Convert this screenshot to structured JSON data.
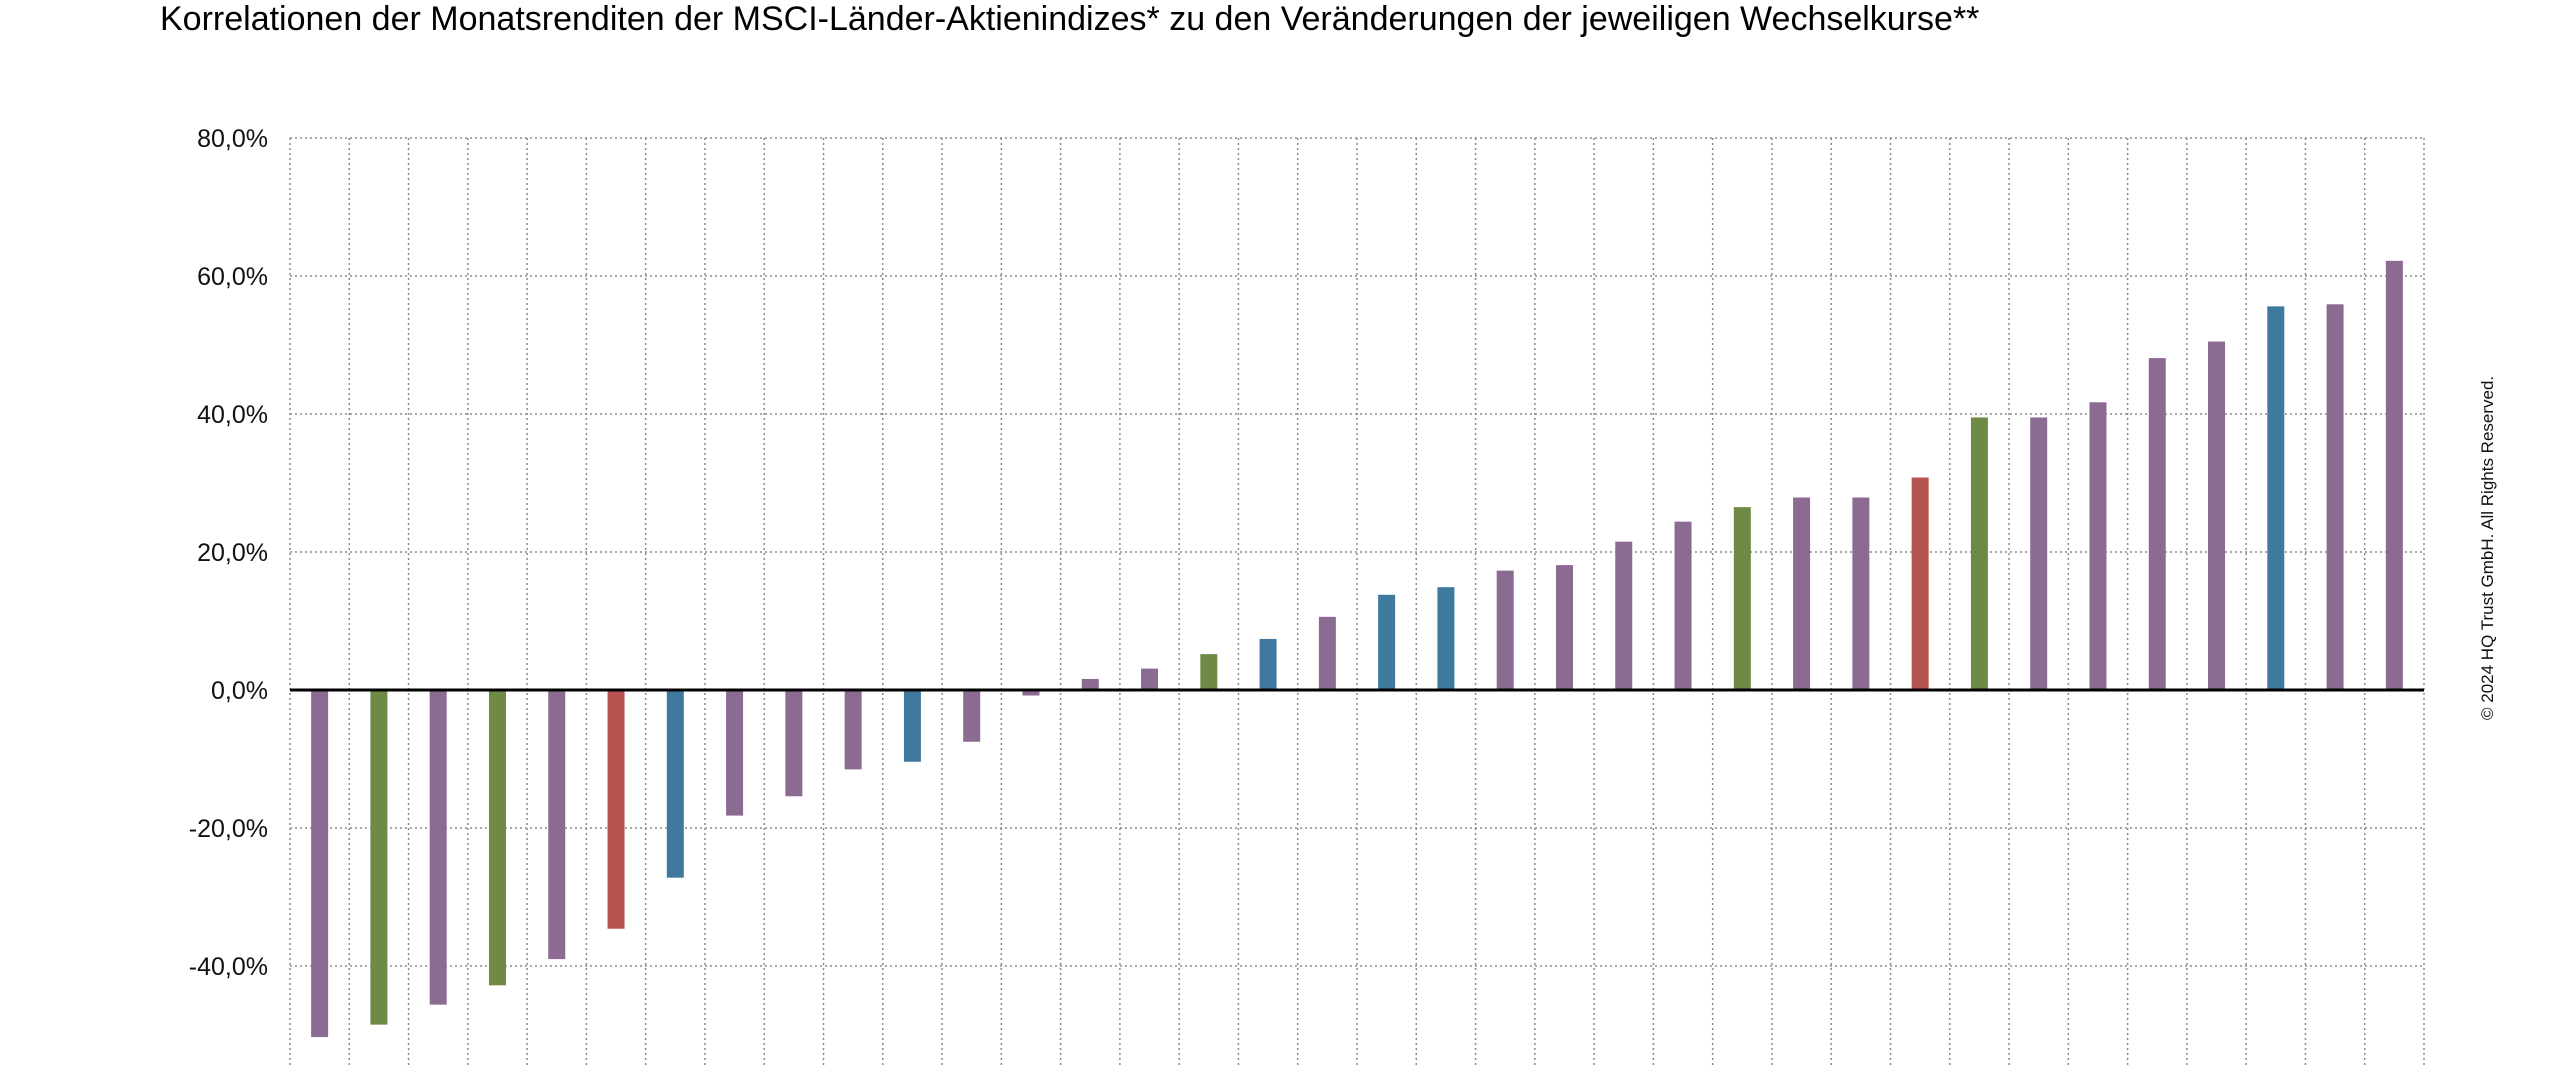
{
  "title": "Korrelationen der Monatsrenditen der MSCI-Länder-Aktienindizes* zu den Veränderungen der jeweiligen Wechselkurse**",
  "copyright": "© 2024 HQ Trust GmbH. All Rights Reserved.",
  "colors": {
    "purple": "#8c6b92",
    "green": "#6f8a47",
    "blue": "#3f7a9e",
    "red": "#b65450",
    "grid": "#8a8a8a",
    "zero": "#000000"
  },
  "chart_data": {
    "type": "bar",
    "title": "Korrelationen der Monatsrenditen der MSCI-Länder-Aktienindizes* zu den Veränderungen der jeweiligen Wechselkurse**",
    "xlabel": "",
    "ylabel": "",
    "ylim": [
      -58,
      80
    ],
    "yticks": [
      80,
      60,
      40,
      20,
      0,
      -20,
      -40
    ],
    "ytick_labels": [
      "80,0%",
      "60,0%",
      "40,0%",
      "20,0%",
      "0,0%",
      "-20,0%",
      "-40,0%"
    ],
    "grid": true,
    "values": [
      -50.3,
      -48.5,
      -45.6,
      -42.8,
      -39.0,
      -34.6,
      -27.2,
      -18.2,
      -15.4,
      -11.5,
      -10.4,
      -7.5,
      -0.8,
      1.6,
      3.1,
      5.2,
      7.4,
      10.6,
      13.8,
      14.9,
      17.3,
      18.1,
      21.5,
      24.4,
      26.5,
      27.9,
      27.9,
      30.8,
      39.5,
      39.5,
      41.7,
      48.1,
      50.5,
      55.6,
      55.9,
      62.2
    ],
    "bar_colors": [
      "purple",
      "green",
      "purple",
      "green",
      "purple",
      "red",
      "blue",
      "purple",
      "purple",
      "purple",
      "blue",
      "purple",
      "purple",
      "purple",
      "purple",
      "green",
      "blue",
      "purple",
      "blue",
      "blue",
      "purple",
      "purple",
      "purple",
      "purple",
      "green",
      "purple",
      "purple",
      "red",
      "green",
      "purple",
      "purple",
      "purple",
      "purple",
      "blue",
      "purple",
      "purple"
    ]
  }
}
